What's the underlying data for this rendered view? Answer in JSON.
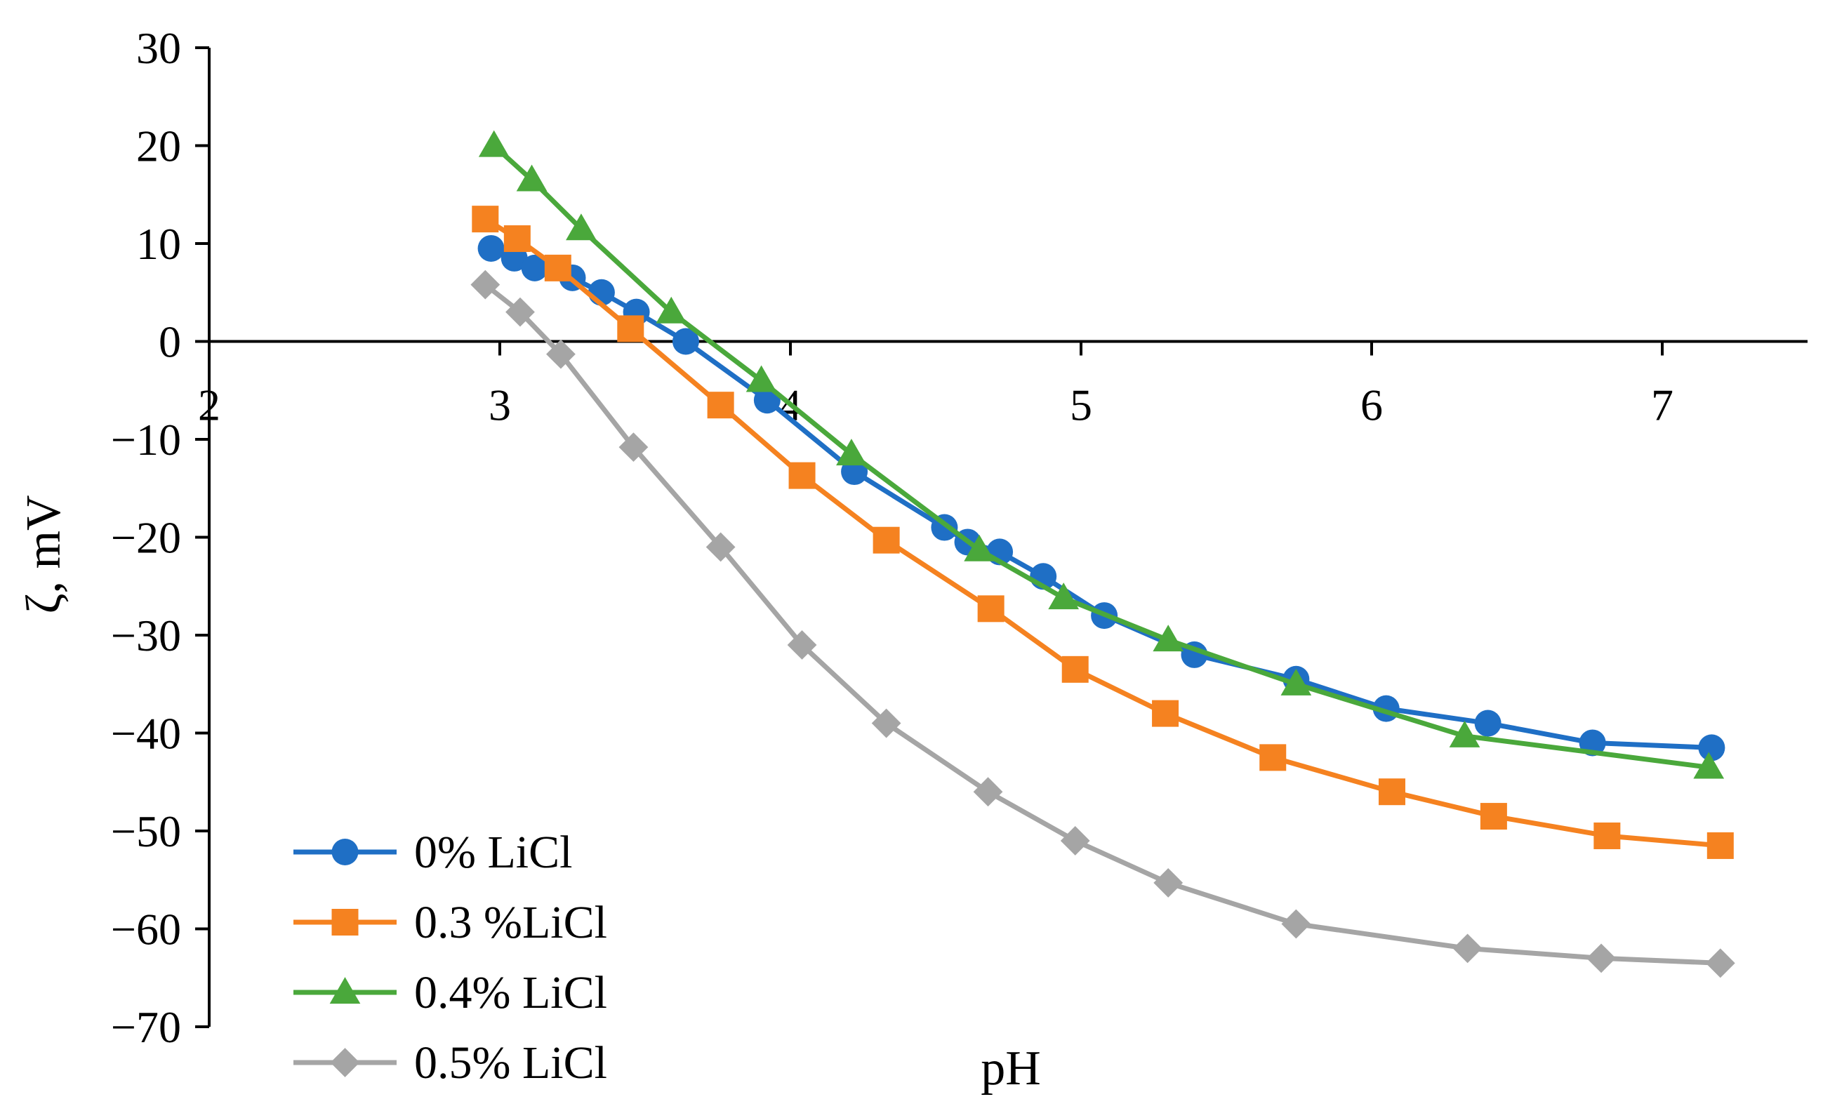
{
  "chart_data": {
    "type": "line",
    "title": "",
    "xlabel": "pH",
    "ylabel": "ζ, mV",
    "xlim": [
      2,
      7.5
    ],
    "ylim": [
      -70,
      30
    ],
    "xticks": [
      2,
      3,
      4,
      5,
      6,
      7
    ],
    "yticks": [
      30,
      20,
      10,
      0,
      -10,
      -20,
      -30,
      -40,
      -50,
      -60,
      -70
    ],
    "xtick_labels": [
      "2",
      "3",
      "4",
      "5",
      "6",
      "7"
    ],
    "ytick_labels": [
      "30",
      "20",
      "10",
      "0",
      "−10",
      "−20",
      "−30",
      "−40",
      "−50",
      "−60",
      "−70"
    ],
    "grid": false,
    "legend_position": "bottom-left",
    "series": [
      {
        "name": "0% LiCl",
        "color": "#1f6fc5",
        "marker": "circle",
        "x": [
          2.97,
          3.05,
          3.12,
          3.25,
          3.35,
          3.47,
          3.64,
          3.92,
          4.22,
          4.53,
          4.61,
          4.72,
          4.87,
          5.08,
          5.39,
          5.74,
          6.05,
          6.4,
          6.76,
          7.17
        ],
        "y": [
          9.5,
          8.5,
          7.5,
          6.5,
          5,
          3,
          0,
          -6,
          -13.3,
          -19,
          -20.5,
          -21.5,
          -24,
          -28,
          -32,
          -34.5,
          -37.5,
          -39,
          -41,
          -41.5
        ]
      },
      {
        "name": "0.3 %LiCl",
        "color": "#f58220",
        "marker": "square",
        "x": [
          2.95,
          3.06,
          3.2,
          3.45,
          3.76,
          4.04,
          4.33,
          4.69,
          4.98,
          5.29,
          5.66,
          6.07,
          6.42,
          6.81,
          7.2
        ],
        "y": [
          12.5,
          10.5,
          7.5,
          1.3,
          -6.5,
          -13.7,
          -20.3,
          -27.3,
          -33.5,
          -38,
          -42.5,
          -46,
          -48.5,
          -50.5,
          -51.5
        ]
      },
      {
        "name": "0.4% LiCl",
        "color": "#4aa83b",
        "marker": "triangle",
        "x": [
          2.98,
          3.11,
          3.28,
          3.59,
          3.9,
          4.21,
          4.65,
          4.94,
          5.3,
          5.74,
          6.32,
          7.16
        ],
        "y": [
          20,
          16.5,
          11.5,
          3,
          -4,
          -11.5,
          -21.3,
          -26.2,
          -30.5,
          -35,
          -40.3,
          -43.5
        ]
      },
      {
        "name": "0.5% LiCl",
        "color": "#a5a5a5",
        "marker": "diamond",
        "x": [
          2.95,
          3.07,
          3.21,
          3.46,
          3.76,
          4.04,
          4.33,
          4.68,
          4.98,
          5.3,
          5.74,
          6.33,
          6.79,
          7.2
        ],
        "y": [
          5.8,
          3,
          -1.3,
          -10.8,
          -21,
          -31,
          -39,
          -46,
          -51,
          -55.3,
          -59.5,
          -62,
          -63,
          -63.5
        ]
      }
    ]
  }
}
